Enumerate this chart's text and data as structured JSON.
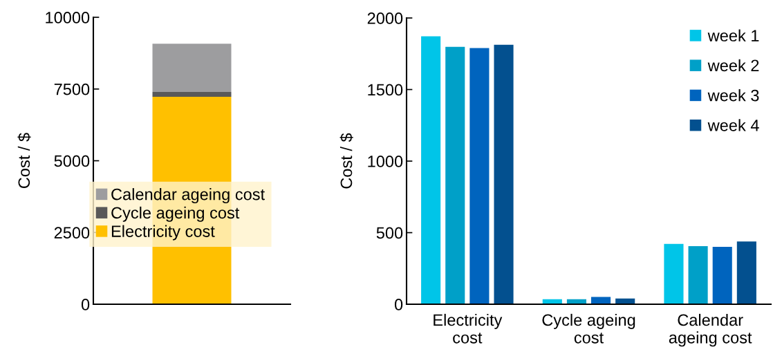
{
  "chart_data": [
    {
      "type": "bar",
      "stacked": true,
      "ylabel": "Cost / $",
      "categories": [
        null
      ],
      "ylim": [
        0,
        10000
      ],
      "yticks": [
        0,
        2500,
        5000,
        7500,
        10000
      ],
      "grid": false,
      "legend": "bottom left",
      "series": [
        {
          "name": "Electricity cost",
          "color": "#ffc000",
          "values": [
            7230
          ]
        },
        {
          "name": "Cycle ageing cost",
          "color": "#595959",
          "values": [
            170
          ]
        },
        {
          "name": "Calendar ageing cost",
          "color": "#9d9d9f",
          "values": [
            1680
          ]
        }
      ]
    },
    {
      "type": "bar",
      "ylabel": "Cost / $",
      "categories": [
        "Electricity cost",
        "Cycle ageing cost",
        "Calendar ageing cost"
      ],
      "ylim": [
        0,
        2000
      ],
      "yticks": [
        0,
        500,
        1000,
        1500,
        2000
      ],
      "grid": false,
      "legend": "top right",
      "series": [
        {
          "name": "week 1",
          "color": "#00c5e8",
          "values": [
            1872,
            35,
            421
          ]
        },
        {
          "name": "week 2",
          "color": "#00a0c8",
          "values": [
            1798,
            35,
            406
          ]
        },
        {
          "name": "week 3",
          "color": "#0064be",
          "values": [
            1790,
            51,
            401
          ]
        },
        {
          "name": "week 4",
          "color": "#03508f",
          "values": [
            1813,
            40,
            439
          ]
        }
      ]
    }
  ]
}
